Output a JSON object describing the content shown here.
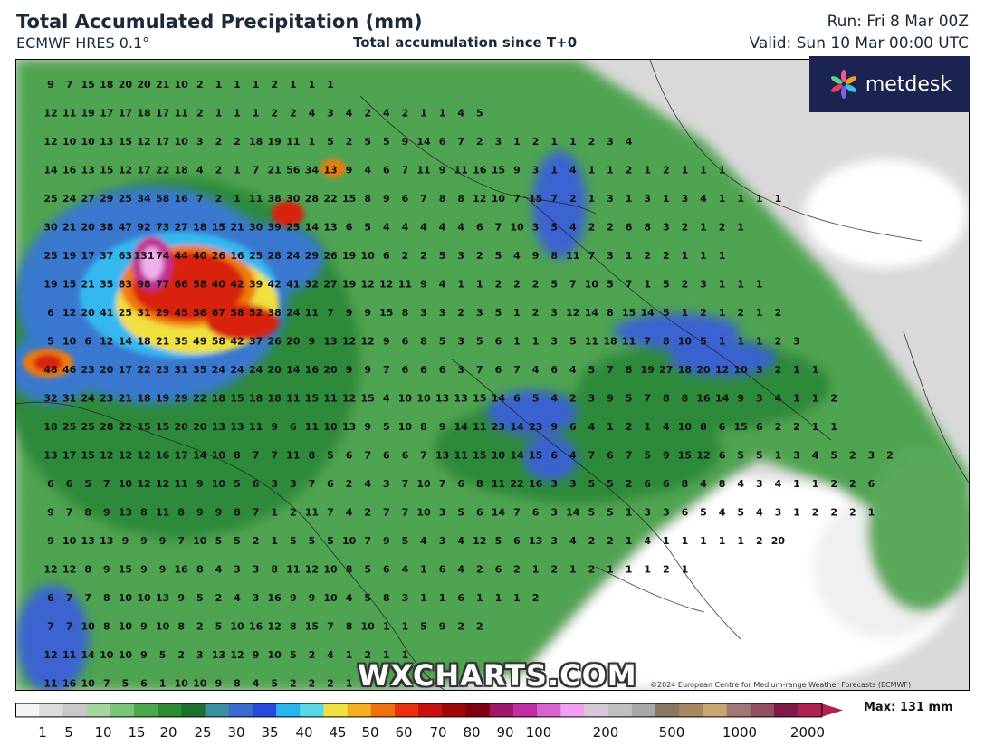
{
  "header": {
    "title": "Total Accumulated Precipitation (mm)",
    "model": "ECMWF HRES 0.1°",
    "subtitle": "Total accumulation since T+0",
    "run": "Run: Fri 8 Mar 00Z",
    "valid": "Valid: Sun 10 Mar 00:00 UTC"
  },
  "logo": {
    "text": "metdesk",
    "icon": "metdesk-flower-icon",
    "bg": "#1b2350"
  },
  "watermark": "WXCHARTS.COM",
  "copyright": "©2024 European Centre for Medium-range Weather Forecasts (ECMWF)",
  "colorbar": {
    "ticks": [
      "1",
      "5",
      "10",
      "15",
      "20",
      "25",
      "30",
      "35",
      "40",
      "45",
      "50",
      "60",
      "70",
      "80",
      "90",
      "100",
      "200",
      "500",
      "1000",
      "2000"
    ],
    "max_label": "Max: 131 mm",
    "colors": [
      "#f4f4f4",
      "#dcdcdc",
      "#c8c8c8",
      "#a6d6a0",
      "#7cc47a",
      "#4ea84e",
      "#2e8a34",
      "#1f7030",
      "#3a8fa0",
      "#3b6ad0",
      "#2a48e0",
      "#28b4f0",
      "#5ad8e8",
      "#f0e040",
      "#f4b020",
      "#f07010",
      "#e83010",
      "#c81010",
      "#a00808",
      "#800010",
      "#a01868",
      "#c030a0",
      "#d860d0",
      "#f0a0f0",
      "#d8c8d8",
      "#c0c0c0",
      "#a8a8a8",
      "#8a7860",
      "#a88860",
      "#c8a870",
      "#a07878",
      "#905060",
      "#801848",
      "#b02050"
    ]
  },
  "map_data": {
    "region": "Central Mediterranean",
    "colors": {
      "light_green": "#6dbb6a",
      "mid_green": "#3d9a45",
      "dark_green": "#1f7a32",
      "blue": "#2b5fd8",
      "cyan": "#35b8f0",
      "yellow": "#f0e040",
      "orange": "#f07a10",
      "red": "#d82010",
      "magenta": "#c03090",
      "pink": "#f0b0f0",
      "grey": "#c8c8c8",
      "white": "#ffffff"
    },
    "rows": [
      "9 7 15 18 20 20 21 10 2 1 1 1 2 1 1 1",
      "12 11 19 17 17 18 17 11 2 1 1 1 2 2 4 3 4 2 4 2 1 1 4 5",
      "12 10 10 13 15 12 17 10 3 2 2 18 19 11 1 5 2 5 5 9 14 6 7 2 3 1 2 1 1 2 3 4",
      "14 16 13 15 12 17 22 18 4 2 1 7 21 56 34 13 9 4 6 7 11 9 11 16 15 9 3 1 4 1 1 2 1 2 1 1 1",
      "25 24 27 29 25 34 58 16 7 2 1 11 38 30 28 22 15 8 9 6 7 8 8 12 10 7 15 7 2 1 3 1 3 1 3 4 1 1 1 1",
      "30 21 20 38 47 92 73 27 18 15 21 30 39 25 14 13 6 5 4 4 4 4 4 6 7 10 3 5 4 2 2 6 8 3 2 1 2 1",
      "25 19 17 37 63 131 74 44 40 26 16 25 28 24 29 26 19 10 6 2 2 5 3 2 5 4 9 8 11 7 3 1 2 2 1 1 1",
      "19 15 21 35 83 98 77 66 58 40 42 39 42 41 32 27 19 12 12 11 9 4 1 1 2 2 2 5 7 10 5 7 1 5 2 3 1 1 1",
      "6 12 20 41 25 31 29 45 56 67 58 52 38 24 11 7 9 9 15 8 3 3 2 3 5 1 2 3 12 14 8 15 14 5 1 2 1 2 1 2",
      "5 10 6 12 14 18 21 35 49 58 42 37 26 20 9 13 12 12 9 6 8 5 3 5 6 1 1 3 5 11 18 11 7 8 10 5 1 1 1 2 3",
      "48 46 23 20 17 22 23 31 35 24 24 24 20 14 16 20 9 9 7 6 6 6 3 7 6 7 4 6 4 5 7 8 19 27 18 20 12 10 3 2 1 1",
      "32 31 24 23 21 18 19 29 22 18 15 18 18 11 15 11 12 15 4 10 10 13 13 15 14 6 5 4 2 3 9 5 7 8 8 16 14 9 3 4 1 1 2",
      "18 25 25 28 22 15 15 20 20 13 13 11 9 6 11 10 13 9 5 10 8 9 14 11 23 14 23 9 6 4 1 2 1 4 10 8 6 15 6 2 2 1 1",
      "13 17 15 12 12 12 16 17 14 10 8 7 7 11 8 5 6 7 6 6 7 13 11 15 10 14 15 6 4 7 6 7 5 9 15 12 6 5 5 1 3 4 5 2 3 2",
      "6 6 5 7 10 12 12 11 9 10 5 6 3 3 7 6 2 4 3 7 10 7 6 8 11 22 16 3 3 5 5 2 6 6 8 4 8 4 3 4 1 1 2 2 6",
      "9 7 8 9 13 8 11 8 9 9 8 7 1 2 11 7 4 2 7 7 10 3 5 6 14 7 6 3 14 5 5 1 3 3 6 5 4 5 4 3 1 2 2 2 1",
      "9 10 13 13 9 9 9 7 10 5 5 2 1 5 5 5 10 7 9 5 4 3 4 12 5 6 13 3 4 2 2 1 4 1 1 1 1 1 2 20",
      "12 12 8 9 15 9 9 16 8 4 3 3 8 11 12 10 8 5 6 4 1 6 4 2 6 2 1 2 1 2 1 1 1 2 1",
      "6 7 7 8 10 10 13 9 5 2 4 3 16 9 9 10 4 5 8 3 1 1 6 1 1 1 2",
      "7 7 10 8 10 9 10 8 2 5 10 16 12 8 15 7 8 10 1 1 5 9 2 2",
      "12 11 14 10 10 9 5 2 3 13 12 9 10 5 2 4 1 2 1 1",
      "11 16 10 7 5 6 1 10 10 9 8 4 5 2 2 2 1 1"
    ]
  }
}
